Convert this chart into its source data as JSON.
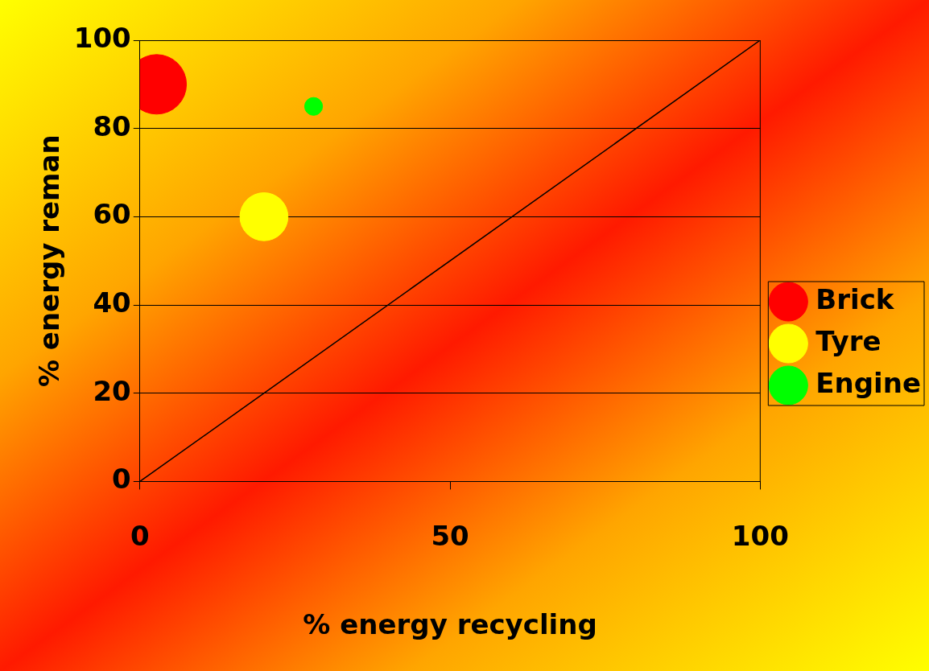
{
  "chart_data": {
    "type": "bubble",
    "xlabel": "% energy recycling",
    "ylabel": "% energy reman",
    "xlim": [
      0,
      100
    ],
    "xticks": [
      0,
      50,
      100
    ],
    "ylim": [
      0,
      100
    ],
    "yticks": [
      0,
      20,
      40,
      60,
      80,
      100
    ],
    "grid": "y",
    "legend": "right",
    "marker": "circle",
    "series": [
      {
        "name": "Brick",
        "color": "#ff0000",
        "x": [
          2.7
        ],
        "values": [
          90
        ],
        "sizes": [
          1
        ]
      },
      {
        "name": "Tyre",
        "color": "#ffff00",
        "x": [
          20
        ],
        "values": [
          60
        ],
        "sizes": [
          0.65
        ]
      },
      {
        "name": "Engine",
        "color": "#00ff00",
        "x": [
          28
        ],
        "values": [
          85
        ],
        "sizes": [
          0.09
        ]
      },
      {
        "type": "line",
        "marker": "none",
        "color": "#000000",
        "x": [
          0,
          100
        ],
        "values": [
          0,
          100
        ]
      }
    ]
  }
}
